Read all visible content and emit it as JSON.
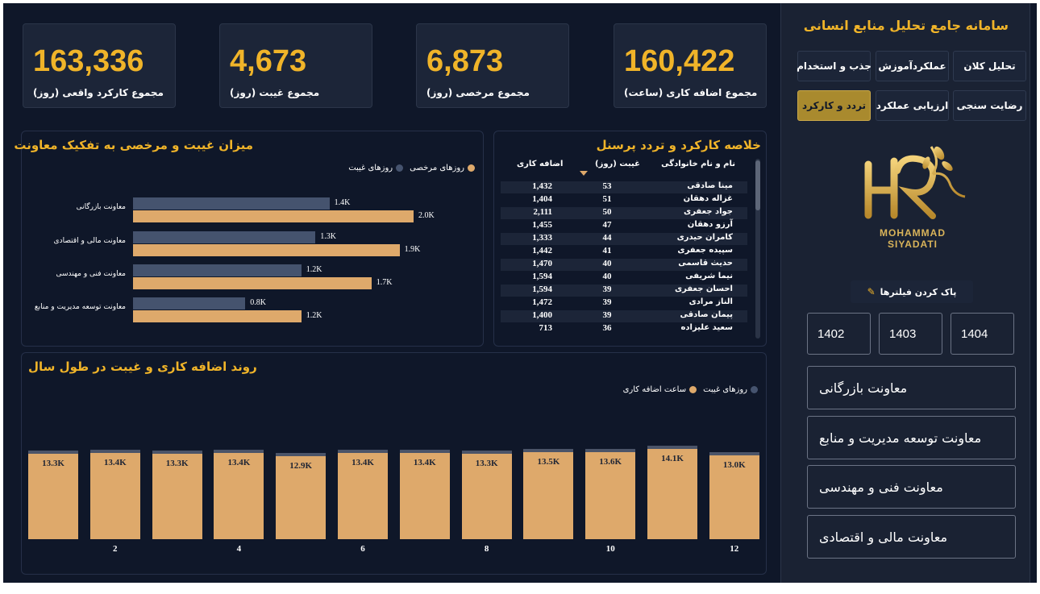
{
  "kpis": [
    {
      "value": "163,336",
      "label": "مجموع کارکرد واقعی (روز)"
    },
    {
      "value": "4,673",
      "label": "مجموع غیبت (روز)"
    },
    {
      "value": "6,873",
      "label": "مجموع مرخصی (روز)"
    },
    {
      "value": "160,422",
      "label": "مجموع اضافه کاری (ساعت)"
    }
  ],
  "bar_panel": {
    "title": "میزان غیبت و مرخصی به تفکیک معاونت",
    "legend_absence": "روزهای غیبت",
    "legend_leave": "روزهای مرخصی"
  },
  "table_panel": {
    "title": "خلاصه کارکرد و تردد پرسنل",
    "col_name": "نام و نام خانوادگی",
    "col_absence": "غیبت (روز)",
    "col_overtime": "اضافه کاری",
    "rows": [
      {
        "name": "مینا صادقی",
        "absence": "53",
        "overtime": "1,432"
      },
      {
        "name": "غزاله دهقان",
        "absence": "51",
        "overtime": "1,404"
      },
      {
        "name": "جواد جعفری",
        "absence": "50",
        "overtime": "2,111"
      },
      {
        "name": "آرزو دهقان",
        "absence": "47",
        "overtime": "1,455"
      },
      {
        "name": "کامران حیدری",
        "absence": "44",
        "overtime": "1,333"
      },
      {
        "name": "سپیده جعفری",
        "absence": "41",
        "overtime": "1,442"
      },
      {
        "name": "حدیث قاسمی",
        "absence": "40",
        "overtime": "1,470"
      },
      {
        "name": "نیما شریفی",
        "absence": "40",
        "overtime": "1,594"
      },
      {
        "name": "احسان جعفری",
        "absence": "39",
        "overtime": "1,594"
      },
      {
        "name": "الناز مرادی",
        "absence": "39",
        "overtime": "1,472"
      },
      {
        "name": "پیمان صادقی",
        "absence": "39",
        "overtime": "1,400"
      },
      {
        "name": "سعید علیزاده",
        "absence": "36",
        "overtime": "713"
      }
    ]
  },
  "col_panel": {
    "title": "روند اضافه کاری و غیبت در طول سال",
    "legend_absence": "روزهای غیبت",
    "legend_overtime": "ساعت اضافه کاری"
  },
  "sidebar": {
    "title": "سامانه جامع تحلیل منابع انسانی",
    "nav": [
      "تحلیل کلان",
      "عملکردآموزش",
      "جذب و استخدام",
      "رضایت سنجی",
      "ارزیابی عملکرد",
      "تردد و کارکرد"
    ],
    "logo_text_1": "MOHAMMAD",
    "logo_text_2": "SIYADATI",
    "clear_filters": "پاک کردن فیلترها",
    "years": [
      "1402",
      "1403",
      "1404"
    ],
    "slicers": [
      "معاونت بازرگانی",
      "معاونت توسعه مدیریت و منابع",
      "معاونت فنی و مهندسی",
      "معاونت مالی و اقتصادی"
    ]
  },
  "colors": {
    "background": "#0f1729",
    "accent": "#f0b429",
    "leave": "#dea96b",
    "absence": "#45536e"
  },
  "chart_data": [
    {
      "type": "bar",
      "orientation": "horizontal",
      "title": "میزان غیبت و مرخصی به تفکیک معاونت",
      "categories": [
        "معاونت بازرگانی",
        "معاونت مالی و اقتصادی",
        "معاونت فنی و مهندسی",
        "معاونت توسعه مدیریت و منابع"
      ],
      "series": [
        {
          "name": "روزهای غیبت",
          "values": [
            1400,
            1300,
            1200,
            800
          ],
          "labels": [
            "1.4K",
            "1.3K",
            "1.2K",
            "0.8K"
          ]
        },
        {
          "name": "روزهای مرخصی",
          "values": [
            2000,
            1900,
            1700,
            1200
          ],
          "labels": [
            "2.0K",
            "1.9K",
            "1.7K",
            "1.2K"
          ]
        }
      ],
      "legend": "top-right"
    },
    {
      "type": "bar",
      "stacked": true,
      "title": "روند اضافه کاری و غیبت در طول سال",
      "x": [
        1,
        2,
        3,
        4,
        5,
        6,
        7,
        8,
        9,
        10,
        11,
        12
      ],
      "xticks": [
        2,
        4,
        6,
        8,
        10,
        12
      ],
      "series": [
        {
          "name": "ساعت اضافه کاری",
          "values": [
            13300,
            13400,
            13300,
            13400,
            12900,
            13400,
            13400,
            13300,
            13500,
            13600,
            14100,
            13000
          ],
          "labels": [
            "13.3K",
            "13.4K",
            "13.3K",
            "13.4K",
            "12.9K",
            "13.4K",
            "13.4K",
            "13.3K",
            "13.5K",
            "13.6K",
            "14.1K",
            "13.0K"
          ]
        },
        {
          "name": "روزهای غیبت",
          "values": [
            390,
            390,
            390,
            390,
            390,
            390,
            390,
            390,
            390,
            390,
            390,
            390
          ]
        }
      ],
      "legend": "top-right"
    }
  ]
}
